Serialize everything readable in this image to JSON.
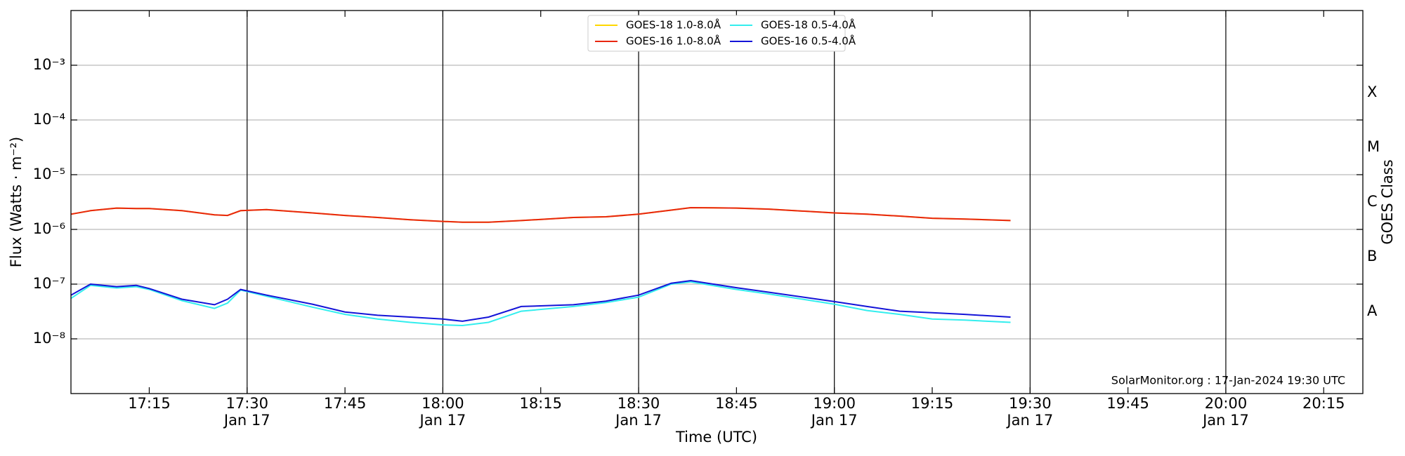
{
  "chart_data": {
    "type": "line",
    "annotation": "SolarMonitor.org : 17-Jan-2024 19:30 UTC",
    "xlabel": "Time (UTC)",
    "ylabel": "Flux (Watts · m⁻²)",
    "y2label": "GOES Class",
    "log_y": true,
    "grid": true,
    "legend": "upper center",
    "x": [
      "17:03",
      "17:06",
      "17:10",
      "17:13",
      "17:15",
      "17:20",
      "17:25",
      "17:27",
      "17:29",
      "17:33",
      "17:40",
      "17:45",
      "17:50",
      "17:55",
      "18:00",
      "18:03",
      "18:07",
      "18:12",
      "18:20",
      "18:25",
      "18:30",
      "18:35",
      "18:38",
      "18:45",
      "18:50",
      "19:00",
      "19:05",
      "19:10",
      "19:15",
      "19:20",
      "19:27"
    ],
    "series": [
      {
        "name": "GOES-18 1.0-8.0Å",
        "color": "#ffd700",
        "values": [
          1.9e-06,
          2.2e-06,
          2.45e-06,
          2.4e-06,
          2.4e-06,
          2.2e-06,
          1.85e-06,
          1.8e-06,
          2.2e-06,
          2.3e-06,
          2e-06,
          1.8e-06,
          1.65e-06,
          1.5e-06,
          1.4e-06,
          1.35e-06,
          1.35e-06,
          1.45e-06,
          1.65e-06,
          1.7e-06,
          1.9e-06,
          2.25e-06,
          2.5e-06,
          2.45e-06,
          2.35e-06,
          2e-06,
          1.9e-06,
          1.75e-06,
          1.6e-06,
          1.55e-06,
          1.45e-06
        ]
      },
      {
        "name": "GOES-16 1.0-8.0Å",
        "color": "#e8260f",
        "values": [
          1.9e-06,
          2.2e-06,
          2.45e-06,
          2.4e-06,
          2.4e-06,
          2.2e-06,
          1.85e-06,
          1.8e-06,
          2.2e-06,
          2.3e-06,
          2e-06,
          1.8e-06,
          1.65e-06,
          1.5e-06,
          1.4e-06,
          1.35e-06,
          1.35e-06,
          1.45e-06,
          1.65e-06,
          1.7e-06,
          1.9e-06,
          2.25e-06,
          2.5e-06,
          2.45e-06,
          2.35e-06,
          2e-06,
          1.9e-06,
          1.75e-06,
          1.6e-06,
          1.55e-06,
          1.45e-06
        ]
      },
      {
        "name": "GOES-18 0.5-4.0Å",
        "color": "#33eeee",
        "values": [
          5.5e-08,
          9.5e-08,
          8.5e-08,
          9e-08,
          8e-08,
          5e-08,
          3.6e-08,
          4.5e-08,
          7.8e-08,
          6e-08,
          3.8e-08,
          2.8e-08,
          2.3e-08,
          2e-08,
          1.8e-08,
          1.75e-08,
          2e-08,
          3.2e-08,
          3.9e-08,
          4.6e-08,
          5.8e-08,
          1e-07,
          1.1e-07,
          8e-08,
          6.6e-08,
          4.3e-08,
          3.3e-08,
          2.8e-08,
          2.3e-08,
          2.2e-08,
          2e-08
        ]
      },
      {
        "name": "GOES-16 0.5-4.0Å",
        "color": "#1414d8",
        "values": [
          6.3e-08,
          1e-07,
          9e-08,
          9.5e-08,
          8.3e-08,
          5.3e-08,
          4.2e-08,
          5.3e-08,
          8e-08,
          6.3e-08,
          4.3e-08,
          3.1e-08,
          2.7e-08,
          2.5e-08,
          2.3e-08,
          2.1e-08,
          2.5e-08,
          3.9e-08,
          4.2e-08,
          4.9e-08,
          6.3e-08,
          1.04e-07,
          1.16e-07,
          8.6e-08,
          7.1e-08,
          4.8e-08,
          3.9e-08,
          3.2e-08,
          3e-08,
          2.8e-08,
          2.5e-08
        ]
      }
    ],
    "xlim": [
      "17:03",
      "20:21"
    ],
    "xticks": [
      "17:15",
      {
        "value": "17:30",
        "label": "17:30\nJan 17"
      },
      "17:45",
      {
        "value": "18:00",
        "label": "18:00\nJan 17"
      },
      "18:15",
      {
        "value": "18:30",
        "label": "18:30\nJan 17"
      },
      "18:45",
      {
        "value": "19:00",
        "label": "19:00\nJan 17"
      },
      "19:15",
      {
        "value": "19:30",
        "label": "19:30\nJan 17"
      },
      "19:45",
      {
        "value": "20:00",
        "label": "20:00\nJan 17"
      },
      "20:15"
    ],
    "ylim": [
      1e-09,
      0.01
    ],
    "yticks": [
      {
        "value": 1e-08,
        "label": "10⁻⁸"
      },
      {
        "value": 1e-07,
        "label": "10⁻⁷"
      },
      {
        "value": 1e-06,
        "label": "10⁻⁶"
      },
      {
        "value": 1e-05,
        "label": "10⁻⁵"
      },
      {
        "value": 0.0001,
        "label": "10⁻⁴"
      },
      {
        "value": 0.001,
        "label": "10⁻³"
      }
    ],
    "y2ticks": [
      {
        "value": 3.162e-08,
        "label": "A"
      },
      {
        "value": 3.162e-07,
        "label": "B"
      },
      {
        "value": 3.162e-06,
        "label": "C"
      },
      {
        "value": 3.162e-05,
        "label": "M"
      },
      {
        "value": 0.0003162,
        "label": "X"
      }
    ]
  }
}
